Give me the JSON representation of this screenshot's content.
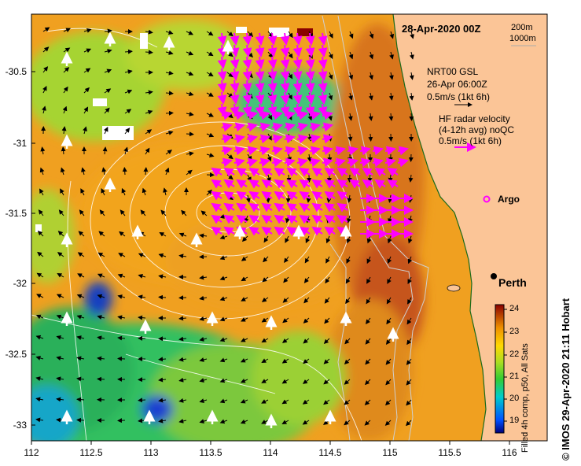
{
  "map": {
    "date": "28-Apr-2020 00Z",
    "depth_contours": [
      "200m",
      "1000m"
    ],
    "place": "Perth",
    "argo_label": "Argo",
    "credit": "© IMOS 29-Apr-2020 21:11 Hobart",
    "x_ticks": [
      "112",
      "112.5",
      "113",
      "113.5",
      "114",
      "114.5",
      "115",
      "115.5",
      "116"
    ],
    "y_ticks": [
      "-30.5",
      "-31",
      "-31.5",
      "-32",
      "-32.5",
      "-33"
    ]
  },
  "legend": {
    "gsl": {
      "title": "NRT00 GSL",
      "time": "26-Apr 06:00Z",
      "scale": "0.5m/s (1kt 6h)"
    },
    "hf": {
      "title": "HF radar velocity",
      "subtitle": "(4-12h avg) noQC",
      "scale": "0.5m/s (1kt 6h)"
    }
  },
  "colorbar": {
    "label": "Filled 4h comp, p50, All Sats",
    "ticks": [
      "24",
      "23",
      "22",
      "21",
      "20",
      "19"
    ]
  },
  "colors": {
    "land": "#fbc597",
    "hf_arrows": "#ff00ff",
    "gsl_arrows": "#000000",
    "float_arrows": "#ffffff"
  }
}
